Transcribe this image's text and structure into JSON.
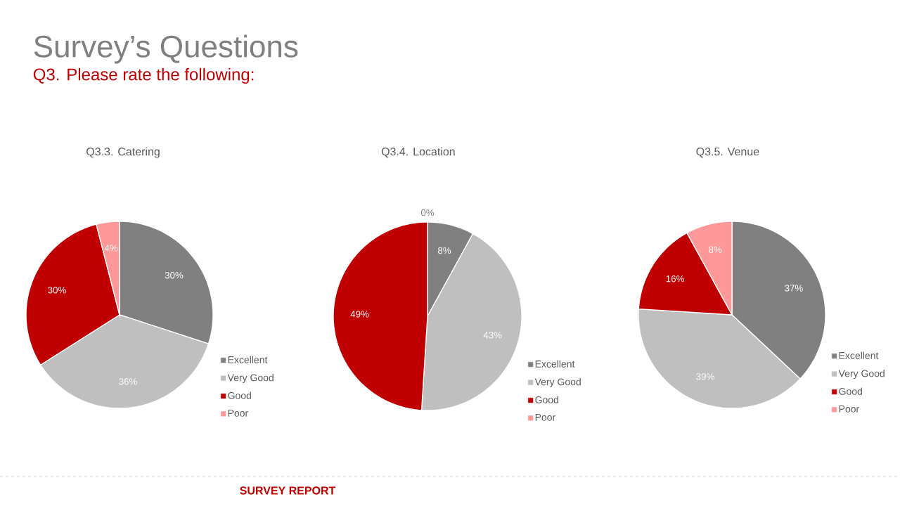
{
  "chart_data": [
    {
      "type": "other",
      "title": "Survey’s Questions",
      "subtitle": "Q3. Please rate the following:",
      "annotations": [
        "SURVEY REPORT"
      ]
    },
    {
      "type": "pie",
      "title": "Q3.3. Catering",
      "categories": [
        "Excellent",
        "Very Good",
        "Good",
        "Poor"
      ],
      "values": [
        30,
        36,
        30,
        4
      ],
      "value_labels": [
        "30%",
        "36%",
        "30%",
        "4%"
      ],
      "colors": [
        "#808080",
        "#bfbfbf",
        "#c00000",
        "#ff9999"
      ],
      "legend": "right"
    },
    {
      "type": "pie",
      "title": "Q3.4. Location",
      "categories": [
        "Excellent",
        "Very Good",
        "Good",
        "Poor"
      ],
      "values": [
        8,
        43,
        49,
        0
      ],
      "value_labels": [
        "8%",
        "43%",
        "49%",
        "0%"
      ],
      "colors": [
        "#808080",
        "#bfbfbf",
        "#c00000",
        "#ff9999"
      ],
      "legend": "right"
    },
    {
      "type": "pie",
      "title": "Q3.5. Venue",
      "categories": [
        "Excellent",
        "Very Good",
        "Good",
        "Poor"
      ],
      "values": [
        37,
        39,
        16,
        8
      ],
      "value_labels": [
        "37%",
        "39%",
        "16%",
        "8%"
      ],
      "colors": [
        "#808080",
        "#bfbfbf",
        "#c00000",
        "#ff9999"
      ],
      "legend": "right"
    }
  ]
}
